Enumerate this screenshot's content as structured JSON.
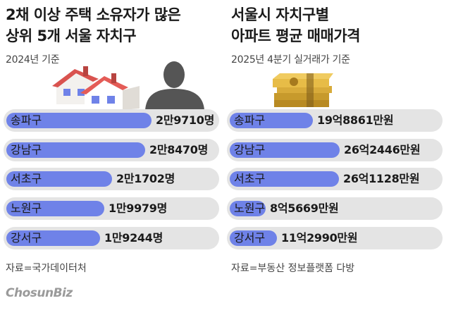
{
  "left_panel": {
    "title_lines": [
      "2채 이상 주택 소유자가 많은",
      "상위 5개 서울 자치구"
    ],
    "subtitle": "2024년 기준",
    "source": "자료=국가데이터처"
  },
  "right_panel": {
    "title_lines": [
      "서울시 자치구별",
      "아파트 평균 매매가격"
    ],
    "subtitle": "2025년 4분기 실거래가 기준",
    "source": "자료=부동산 정보플랫폼 다방"
  },
  "logo": "ChosunBiz",
  "chart_data": [
    {
      "type": "bar",
      "orientation": "horizontal",
      "title": "2채 이상 주택 소유자가 많은 상위 5개 서울 자치구",
      "subtitle": "2024년 기준",
      "categories": [
        "송파구",
        "강남구",
        "서초구",
        "노원구",
        "강서구"
      ],
      "values": [
        29710,
        28470,
        21702,
        19979,
        19244
      ],
      "value_labels": [
        "2만9710명",
        "2만8470명",
        "2만1702명",
        "1만9979명",
        "1만9244명"
      ],
      "colors": {
        "bar": "#6f82e8",
        "track": "#e4e4e4"
      }
    },
    {
      "type": "bar",
      "orientation": "horizontal",
      "title": "서울시 자치구별 아파트 평균 매매가격",
      "subtitle": "2025년 4분기 실거래가 기준",
      "categories": [
        "송파구",
        "강남구",
        "서초구",
        "노원구",
        "강서구"
      ],
      "values": [
        198861,
        262446,
        261128,
        85669,
        112990
      ],
      "value_labels": [
        "19억8861만원",
        "26억2446만원",
        "26억1128만원",
        "8억5669만원",
        "11억2990만원"
      ],
      "colors": {
        "bar": "#6f82e8",
        "track": "#e4e4e4"
      }
    }
  ]
}
